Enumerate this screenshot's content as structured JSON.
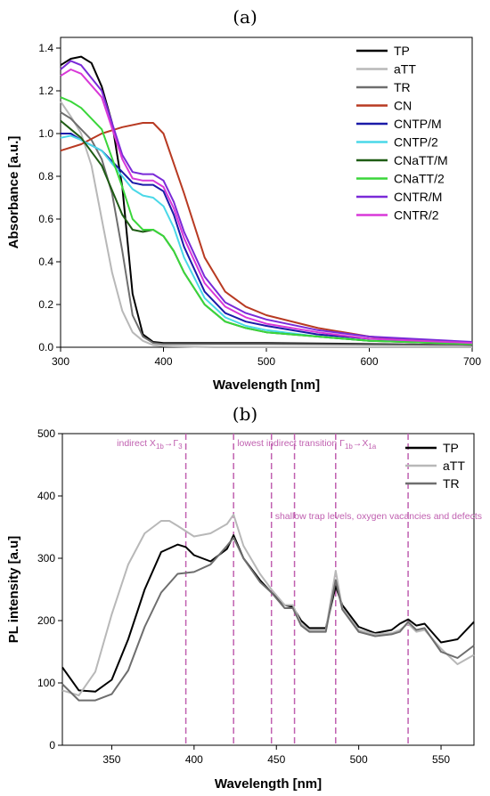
{
  "chart_data": [
    {
      "panel_label": "(a)",
      "type": "line",
      "xlabel": "Wavelength [nm]",
      "ylabel": "Absorbance [a.u.]",
      "xlim": [
        300,
        700
      ],
      "ylim": [
        0.0,
        1.45
      ],
      "xticks": [
        300,
        400,
        500,
        600,
        700
      ],
      "yticks": [
        0.0,
        0.2,
        0.4,
        0.6,
        0.8,
        1.0,
        1.2,
        1.4
      ],
      "ytick_labels": [
        "0.0",
        "0.2",
        "0.4",
        "0.6",
        "0.8",
        "1.0",
        "1.2",
        "1.4"
      ],
      "grid": false,
      "legend": "right",
      "series": [
        {
          "name": "TP",
          "color": "#000000",
          "x": [
            300,
            310,
            320,
            330,
            340,
            350,
            360,
            370,
            380,
            390,
            400,
            450,
            500,
            600,
            700
          ],
          "y": [
            1.32,
            1.35,
            1.36,
            1.33,
            1.22,
            1.05,
            0.75,
            0.25,
            0.06,
            0.025,
            0.02,
            0.02,
            0.02,
            0.015,
            0.01
          ]
        },
        {
          "name": "aTT",
          "color": "#b8b8b8",
          "x": [
            300,
            310,
            320,
            330,
            340,
            350,
            360,
            370,
            380,
            390,
            400,
            450,
            500,
            600,
            700
          ],
          "y": [
            1.15,
            1.08,
            1.0,
            0.85,
            0.6,
            0.35,
            0.17,
            0.07,
            0.03,
            0.01,
            0.005,
            0.0,
            0.0,
            0.0,
            0.0
          ]
        },
        {
          "name": "TR",
          "color": "#6e6e6e",
          "x": [
            300,
            310,
            320,
            330,
            340,
            350,
            360,
            370,
            380,
            390,
            400,
            450,
            500,
            600,
            700
          ],
          "y": [
            1.1,
            1.07,
            1.02,
            0.97,
            0.88,
            0.72,
            0.45,
            0.15,
            0.05,
            0.02,
            0.015,
            0.015,
            0.015,
            0.012,
            0.01
          ]
        },
        {
          "name": "CN",
          "color": "#b83a22",
          "x": [
            300,
            320,
            340,
            360,
            380,
            390,
            400,
            420,
            440,
            460,
            480,
            500,
            550,
            600,
            650,
            700
          ],
          "y": [
            0.92,
            0.95,
            1.0,
            1.03,
            1.05,
            1.05,
            1.0,
            0.72,
            0.42,
            0.26,
            0.19,
            0.15,
            0.09,
            0.05,
            0.03,
            0.02
          ]
        },
        {
          "name": "CNTP/M",
          "color": "#1a1aa8",
          "x": [
            300,
            310,
            320,
            340,
            360,
            370,
            380,
            390,
            400,
            410,
            420,
            440,
            460,
            480,
            500,
            550,
            600,
            700
          ],
          "y": [
            1.0,
            1.0,
            0.97,
            0.92,
            0.82,
            0.77,
            0.76,
            0.76,
            0.73,
            0.62,
            0.47,
            0.26,
            0.16,
            0.12,
            0.1,
            0.06,
            0.04,
            0.02
          ]
        },
        {
          "name": "CNTP/2",
          "color": "#4ad8e8",
          "x": [
            300,
            310,
            320,
            340,
            360,
            370,
            380,
            390,
            400,
            410,
            420,
            440,
            460,
            480,
            500,
            550,
            600,
            700
          ],
          "y": [
            0.98,
            0.99,
            0.97,
            0.92,
            0.8,
            0.74,
            0.71,
            0.7,
            0.66,
            0.56,
            0.42,
            0.23,
            0.14,
            0.1,
            0.08,
            0.05,
            0.03,
            0.02
          ]
        },
        {
          "name": "CNaTT/M",
          "color": "#1e5c14",
          "x": [
            300,
            310,
            320,
            340,
            360,
            370,
            380,
            390,
            400,
            410,
            420,
            440,
            460,
            480,
            500,
            550,
            600,
            700
          ],
          "y": [
            1.06,
            1.02,
            0.98,
            0.85,
            0.62,
            0.55,
            0.54,
            0.55,
            0.52,
            0.45,
            0.35,
            0.2,
            0.12,
            0.09,
            0.07,
            0.05,
            0.03,
            0.015
          ]
        },
        {
          "name": "CNaTT/2",
          "color": "#3ad63a",
          "x": [
            300,
            310,
            320,
            340,
            360,
            370,
            380,
            390,
            400,
            410,
            420,
            440,
            460,
            480,
            500,
            550,
            600,
            700
          ],
          "y": [
            1.17,
            1.15,
            1.12,
            1.02,
            0.75,
            0.6,
            0.55,
            0.55,
            0.52,
            0.45,
            0.35,
            0.2,
            0.12,
            0.09,
            0.07,
            0.05,
            0.03,
            0.015
          ]
        },
        {
          "name": "CNTR/M",
          "color": "#7a2ad8",
          "x": [
            300,
            310,
            320,
            340,
            360,
            370,
            380,
            390,
            400,
            410,
            420,
            440,
            460,
            480,
            500,
            550,
            600,
            700
          ],
          "y": [
            1.3,
            1.34,
            1.32,
            1.2,
            0.9,
            0.82,
            0.81,
            0.81,
            0.78,
            0.68,
            0.54,
            0.33,
            0.21,
            0.16,
            0.13,
            0.08,
            0.05,
            0.025
          ]
        },
        {
          "name": "CNTR/2",
          "color": "#d838d8",
          "x": [
            300,
            310,
            320,
            340,
            360,
            370,
            380,
            390,
            400,
            410,
            420,
            440,
            460,
            480,
            500,
            550,
            600,
            700
          ],
          "y": [
            1.27,
            1.3,
            1.28,
            1.17,
            0.88,
            0.79,
            0.78,
            0.78,
            0.75,
            0.65,
            0.51,
            0.3,
            0.19,
            0.14,
            0.11,
            0.07,
            0.04,
            0.02
          ]
        }
      ]
    },
    {
      "panel_label": "(b)",
      "type": "line",
      "xlabel": "Wavelength [nm]",
      "ylabel": "PL intensity [a.u]",
      "xlim": [
        320,
        570
      ],
      "ylim": [
        0,
        500
      ],
      "xticks": [
        350,
        400,
        450,
        500,
        550
      ],
      "yticks": [
        0,
        100,
        200,
        300,
        400,
        500
      ],
      "ytick_labels": [
        "0",
        "100",
        "200",
        "300",
        "400",
        "500"
      ],
      "grid": false,
      "legend": "top-right",
      "series": [
        {
          "name": "TP",
          "color": "#000000",
          "x": [
            320,
            330,
            340,
            350,
            360,
            370,
            380,
            390,
            395,
            400,
            410,
            420,
            424,
            430,
            440,
            447,
            455,
            460,
            465,
            470,
            480,
            486,
            490,
            500,
            510,
            520,
            525,
            530,
            535,
            540,
            550,
            560,
            570
          ],
          "y": [
            125,
            88,
            86,
            105,
            170,
            250,
            310,
            322,
            318,
            305,
            295,
            315,
            337,
            300,
            265,
            245,
            225,
            222,
            200,
            188,
            188,
            255,
            225,
            190,
            180,
            185,
            195,
            202,
            192,
            195,
            165,
            170,
            198
          ]
        },
        {
          "name": "aTT",
          "color": "#b8b8b8",
          "x": [
            320,
            330,
            340,
            350,
            360,
            370,
            380,
            385,
            390,
            400,
            410,
            420,
            424,
            430,
            440,
            447,
            455,
            460,
            465,
            470,
            480,
            486,
            490,
            500,
            510,
            520,
            525,
            530,
            535,
            540,
            550,
            560,
            570
          ],
          "y": [
            88,
            80,
            118,
            210,
            290,
            340,
            360,
            360,
            352,
            335,
            340,
            355,
            370,
            320,
            275,
            250,
            225,
            225,
            195,
            185,
            185,
            280,
            220,
            185,
            178,
            180,
            185,
            195,
            182,
            185,
            155,
            130,
            145
          ]
        },
        {
          "name": "TR",
          "color": "#6e6e6e",
          "x": [
            320,
            330,
            340,
            350,
            360,
            370,
            380,
            390,
            400,
            410,
            420,
            424,
            430,
            440,
            447,
            455,
            460,
            465,
            470,
            480,
            486,
            490,
            500,
            510,
            520,
            525,
            530,
            535,
            540,
            550,
            560,
            570
          ],
          "y": [
            98,
            72,
            72,
            82,
            120,
            190,
            245,
            275,
            278,
            290,
            320,
            333,
            300,
            262,
            245,
            220,
            220,
            192,
            182,
            182,
            265,
            218,
            182,
            175,
            178,
            182,
            198,
            185,
            188,
            150,
            140,
            160
          ]
        }
      ],
      "reference_lines": [
        {
          "x": 395,
          "label": "indirect X",
          "sub": "1b",
          "arrow": "→Γ",
          "sub2": "3"
        },
        {
          "x": 424,
          "label": "lowest indirect transition Γ",
          "sub": "1b",
          "arrow": "→X",
          "sub2": "1a"
        },
        {
          "x": 447,
          "label": "shallow trap levels, oxygen vacancies and defects"
        },
        {
          "x": 461
        },
        {
          "x": 486
        },
        {
          "x": 530
        }
      ],
      "annotation_color": "#c060b0"
    }
  ]
}
